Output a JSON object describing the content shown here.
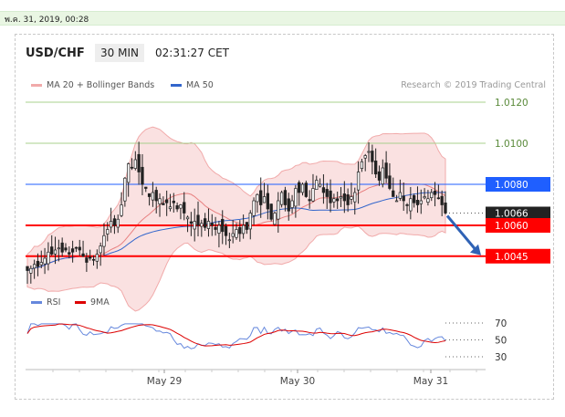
{
  "date_label": "พ.ค. 31, 2019, 00:28",
  "header": {
    "pair": "USD/CHF",
    "timeframe": "30 MIN",
    "clock": "02:31:27 CET"
  },
  "legend": {
    "ma20": "MA 20 + Bollinger Bands",
    "ma50": "MA 50",
    "rsi": "RSI",
    "ma9": "9MA",
    "copyright": "Research © 2019 Trading Central"
  },
  "colors": {
    "bb": "#f1aaaa",
    "ma20": "#e88080",
    "ma50": "#3366cc",
    "rsi": "#6688dd",
    "ma9": "#dd0000",
    "level_red": "#ff0000",
    "level_blue": "#1f5fff",
    "level_green": "#a8d08d",
    "last": "#222222"
  },
  "chart_data": [
    {
      "type": "candlestick",
      "ylim": [
        1.0032,
        1.0124
      ],
      "x_ticks": [
        "May 29",
        "May 30",
        "May 31"
      ],
      "levels": [
        {
          "label": "1.0120",
          "value": 1.012,
          "style": "green"
        },
        {
          "label": "1.0100",
          "value": 1.01,
          "style": "green"
        },
        {
          "label": "1.0080",
          "value": 1.008,
          "style": "blue"
        },
        {
          "label": "1.0066",
          "value": 1.0066,
          "style": "last"
        },
        {
          "label": "1.0060",
          "value": 1.006,
          "style": "red"
        },
        {
          "label": "1.0045",
          "value": 1.0045,
          "style": "red"
        }
      ],
      "close_path": [
        1.0038,
        1.0039,
        1.0041,
        1.004,
        1.0042,
        1.0044,
        1.0047,
        1.0046,
        1.0048,
        1.0049,
        1.0047,
        1.0048,
        1.0046,
        1.0047,
        1.0049,
        1.0048,
        1.0045,
        1.0042,
        1.0044,
        1.0043,
        1.0046,
        1.005,
        1.0055,
        1.0058,
        1.0062,
        1.006,
        1.0063,
        1.007,
        1.0083,
        1.009,
        1.0088,
        1.0092,
        1.0086,
        1.008,
        1.0078,
        1.0074,
        1.0076,
        1.0072,
        1.0073,
        1.007,
        1.0071,
        1.0069,
        1.0071,
        1.0068,
        1.007,
        1.0066,
        1.0064,
        1.0061,
        1.0062,
        1.006,
        1.0061,
        1.0059,
        1.0062,
        1.006,
        1.0058,
        1.006,
        1.0057,
        1.0055,
        1.0053,
        1.0056,
        1.0058,
        1.0056,
        1.006,
        1.0058,
        1.0066,
        1.0072,
        1.0075,
        1.007,
        1.0074,
        1.0068,
        1.0063,
        1.0066,
        1.0072,
        1.0076,
        1.007,
        1.0067,
        1.0072,
        1.0078,
        1.0076,
        1.008,
        1.0074,
        1.0072,
        1.0078,
        1.0082,
        1.008,
        1.0076,
        1.0074,
        1.0071,
        1.0073,
        1.0072,
        1.0074,
        1.0072,
        1.007,
        1.0074,
        1.0076,
        1.0086,
        1.0091,
        1.0094,
        1.0096,
        1.0091,
        1.0085,
        1.0082,
        1.0088,
        1.0083,
        1.0078,
        1.0074,
        1.0072,
        1.0076,
        1.0072,
        1.007,
        1.0073,
        1.0071,
        1.007,
        1.0072,
        1.0074,
        1.0073,
        1.0076,
        1.0075,
        1.0073,
        1.007,
        1.0066
      ],
      "ma50_range": [
        1.0048,
        1.0079
      ],
      "arrow": {
        "from": 1.0066,
        "to": 1.0045
      }
    },
    {
      "type": "line",
      "series": [
        {
          "name": "RSI"
        },
        {
          "name": "9MA"
        }
      ],
      "ylim": [
        30,
        70
      ],
      "y_ticks": [
        70,
        50,
        30
      ]
    }
  ]
}
